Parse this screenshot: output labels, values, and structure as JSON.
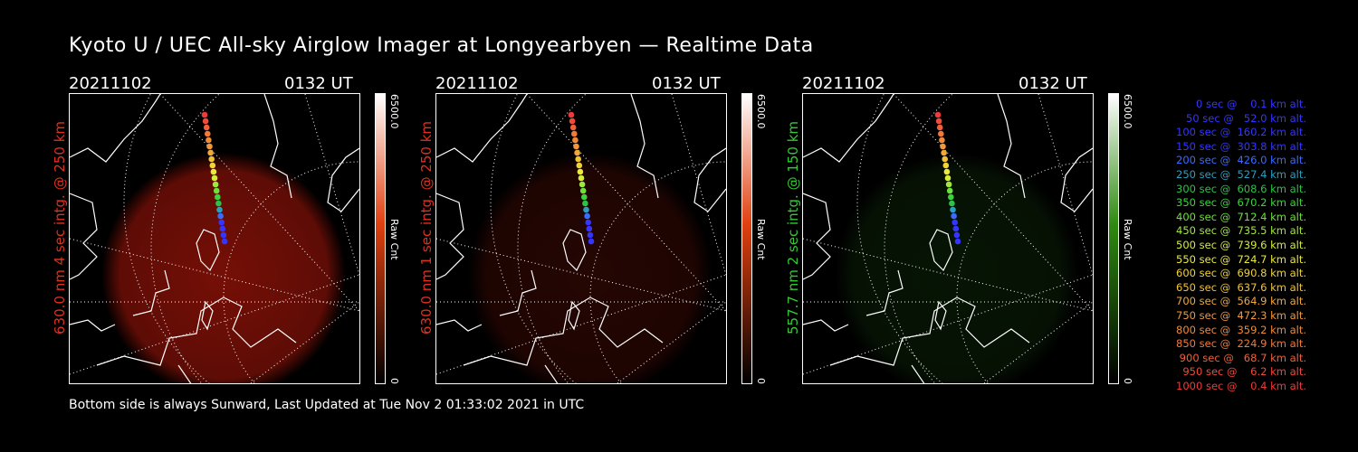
{
  "title": "Kyoto U / UEC All-sky Airglow Imager at Longyearbyen — Realtime Data",
  "panels": [
    {
      "date": "20211102",
      "time": "0132 UT",
      "side_label": "630.0 nm 4 sec intg. @ 250 km",
      "label_color": "#e0301e",
      "cbar_max": "6500.0",
      "cbar_min": "0",
      "cbar_unit": "Raw Cnt",
      "cbar_color": "#e04010",
      "glow_color": "#8a1208",
      "glow_level": 0.85
    },
    {
      "date": "20211102",
      "time": "0132 UT",
      "side_label": "630.0 nm 1 sec intg. @ 250 km",
      "label_color": "#e0301e",
      "cbar_max": "6500.0",
      "cbar_min": "0",
      "cbar_unit": "Raw Cnt",
      "cbar_color": "#e04010",
      "glow_color": "#4a0c06",
      "glow_level": 0.5
    },
    {
      "date": "20211102",
      "time": "0132 UT",
      "side_label": "557.7 nm 2 sec intg. @ 150 km",
      "label_color": "#34c834",
      "cbar_max": "6500.0",
      "cbar_min": "0",
      "cbar_unit": "Raw Cnt",
      "cbar_color": "#2e8a10",
      "glow_color": "#0e2a0a",
      "glow_level": 0.5
    }
  ],
  "footer": "Bottom side is always Sunward, Last Updated at Tue Nov  2 01:33:02 2021 in UTC",
  "legend": [
    {
      "text": "   0 sec @    0.1 km alt.",
      "color": "#3535ff"
    },
    {
      "text": "  50 sec @   52.0 km alt.",
      "color": "#3535ff"
    },
    {
      "text": " 100 sec @  160.2 km alt.",
      "color": "#3535ff"
    },
    {
      "text": " 150 sec @  303.8 km alt.",
      "color": "#3535ff"
    },
    {
      "text": " 200 sec @  426.0 km alt.",
      "color": "#3a6cff"
    },
    {
      "text": " 250 sec @  527.4 km alt.",
      "color": "#2aa0c0"
    },
    {
      "text": " 300 sec @  608.6 km alt.",
      "color": "#2cc24a"
    },
    {
      "text": " 350 sec @  670.2 km alt.",
      "color": "#3cd43c"
    },
    {
      "text": " 400 sec @  712.4 km alt.",
      "color": "#6ee03a"
    },
    {
      "text": " 450 sec @  735.5 km alt.",
      "color": "#a0e83a"
    },
    {
      "text": " 500 sec @  739.6 km alt.",
      "color": "#d6ec3a"
    },
    {
      "text": " 550 sec @  724.7 km alt.",
      "color": "#eaea3a"
    },
    {
      "text": " 600 sec @  690.8 km alt.",
      "color": "#f0d23a"
    },
    {
      "text": " 650 sec @  637.6 km alt.",
      "color": "#f0c23a"
    },
    {
      "text": " 700 sec @  564.9 km alt.",
      "color": "#f0a83a"
    },
    {
      "text": " 750 sec @  472.3 km alt.",
      "color": "#f0983a"
    },
    {
      "text": " 800 sec @  359.2 km alt.",
      "color": "#f08a3a"
    },
    {
      "text": " 850 sec @  224.9 km alt.",
      "color": "#f07a3a"
    },
    {
      "text": " 900 sec @   68.7 km alt.",
      "color": "#f0603a"
    },
    {
      "text": " 950 sec @    6.2 km alt.",
      "color": "#f04a3a"
    },
    {
      "text": "1000 sec @    0.4 km alt.",
      "color": "#f03a3a"
    }
  ]
}
